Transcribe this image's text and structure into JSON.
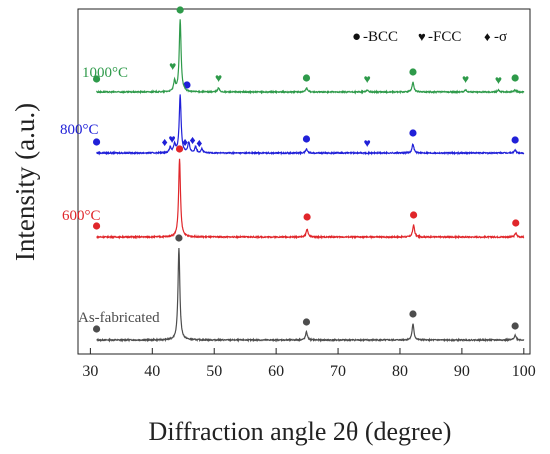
{
  "chart_data": {
    "type": "line",
    "xlabel": "Diffraction angle 2θ (degree)",
    "ylabel": "Intensity (a.u.)",
    "xlim": [
      28,
      101
    ],
    "xticks": [
      30,
      40,
      50,
      60,
      70,
      80,
      90,
      100
    ],
    "ylabel_note": "",
    "legend": {
      "placement": "top-right",
      "entries": [
        {
          "symbol": "●",
          "label": "-BCC"
        },
        {
          "symbol": "♥",
          "label": "-FCC"
        },
        {
          "symbol": "♦",
          "label": "-σ"
        }
      ]
    },
    "series": [
      {
        "name": "As-fabricated",
        "color": "#4d4d4d",
        "baseline": 0.0,
        "peaks": [
          {
            "x": 44.3,
            "h": 0.92
          },
          {
            "x": 64.9,
            "h": 0.08
          },
          {
            "x": 82.1,
            "h": 0.16
          },
          {
            "x": 98.6,
            "h": 0.05
          }
        ],
        "markers": [
          {
            "x": 31.0,
            "phase": "BCC",
            "h": 0.05
          },
          {
            "x": 44.3,
            "phase": "BCC",
            "h": 0.96
          },
          {
            "x": 64.9,
            "phase": "BCC",
            "h": 0.12
          },
          {
            "x": 82.1,
            "phase": "BCC",
            "h": 0.2
          },
          {
            "x": 98.6,
            "phase": "BCC",
            "h": 0.08
          }
        ]
      },
      {
        "name": "600°C",
        "color": "#e0262a",
        "baseline": 1.0,
        "peaks": [
          {
            "x": 44.4,
            "h": 0.78
          },
          {
            "x": 65.0,
            "h": 0.08
          },
          {
            "x": 82.2,
            "h": 0.12
          },
          {
            "x": 98.7,
            "h": 0.04
          }
        ],
        "markers": [
          {
            "x": 31.0,
            "phase": "BCC",
            "h": 0.05
          },
          {
            "x": 44.4,
            "phase": "BCC",
            "h": 0.82
          },
          {
            "x": 65.0,
            "phase": "BCC",
            "h": 0.14
          },
          {
            "x": 82.2,
            "phase": "BCC",
            "h": 0.16
          },
          {
            "x": 98.7,
            "phase": "BCC",
            "h": 0.08
          }
        ]
      },
      {
        "name": "800°C",
        "color": "#2020d8",
        "baseline": 2.0,
        "peaks": [
          {
            "x": 42.9,
            "h": 0.05
          },
          {
            "x": 43.6,
            "h": 0.08
          },
          {
            "x": 44.5,
            "h": 0.58
          },
          {
            "x": 45.9,
            "h": 0.1
          },
          {
            "x": 47.0,
            "h": 0.06
          },
          {
            "x": 48.0,
            "h": 0.04
          },
          {
            "x": 64.9,
            "h": 0.04
          },
          {
            "x": 82.1,
            "h": 0.09
          },
          {
            "x": 98.6,
            "h": 0.03
          }
        ],
        "markers": [
          {
            "x": 31.0,
            "phase": "BCC",
            "h": 0.05
          },
          {
            "x": 42.0,
            "phase": "sigma",
            "h": 0.05
          },
          {
            "x": 43.2,
            "phase": "FCC",
            "h": 0.08
          },
          {
            "x": 45.6,
            "phase": "BCC",
            "h": 0.62
          },
          {
            "x": 45.3,
            "phase": "sigma",
            "h": 0.05
          },
          {
            "x": 46.5,
            "phase": "sigma",
            "h": 0.07
          },
          {
            "x": 47.6,
            "phase": "sigma",
            "h": 0.04
          },
          {
            "x": 64.9,
            "phase": "BCC",
            "h": 0.08
          },
          {
            "x": 74.7,
            "phase": "FCC",
            "h": 0.04
          },
          {
            "x": 82.1,
            "phase": "BCC",
            "h": 0.14
          },
          {
            "x": 98.6,
            "phase": "BCC",
            "h": 0.07
          }
        ]
      },
      {
        "name": "1000°C",
        "color": "#2e9a4a",
        "baseline": 3.0,
        "peaks": [
          {
            "x": 43.6,
            "h": 0.1
          },
          {
            "x": 44.5,
            "h": 0.72
          },
          {
            "x": 50.7,
            "h": 0.04
          },
          {
            "x": 64.9,
            "h": 0.04
          },
          {
            "x": 74.7,
            "h": 0.02
          },
          {
            "x": 82.1,
            "h": 0.1
          },
          {
            "x": 90.6,
            "h": 0.02
          },
          {
            "x": 95.9,
            "h": 0.02
          },
          {
            "x": 98.6,
            "h": 0.02
          }
        ],
        "markers": [
          {
            "x": 31.0,
            "phase": "BCC",
            "h": 0.07
          },
          {
            "x": 43.3,
            "phase": "FCC",
            "h": 0.2
          },
          {
            "x": 44.5,
            "phase": "BCC",
            "h": 0.76
          },
          {
            "x": 50.7,
            "phase": "FCC",
            "h": 0.08
          },
          {
            "x": 64.9,
            "phase": "BCC",
            "h": 0.08
          },
          {
            "x": 74.7,
            "phase": "FCC",
            "h": 0.07
          },
          {
            "x": 82.1,
            "phase": "BCC",
            "h": 0.14
          },
          {
            "x": 90.6,
            "phase": "FCC",
            "h": 0.07
          },
          {
            "x": 95.9,
            "phase": "FCC",
            "h": 0.06
          },
          {
            "x": 98.6,
            "phase": "BCC",
            "h": 0.08
          }
        ]
      }
    ]
  }
}
